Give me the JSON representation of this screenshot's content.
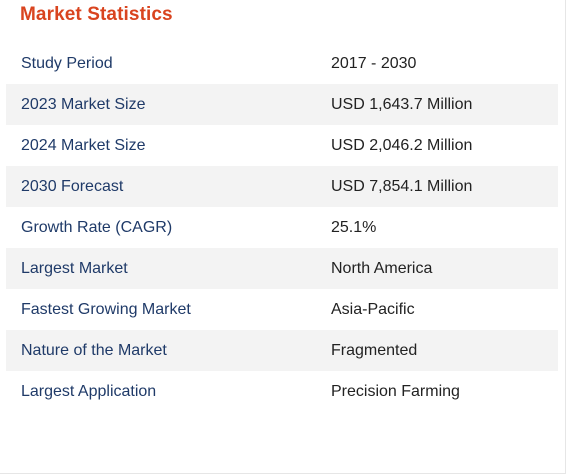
{
  "header": {
    "title": "Market Statistics"
  },
  "stats": [
    {
      "label": "Study Period",
      "value": "2017 - 2030"
    },
    {
      "label": "2023 Market Size",
      "value": "USD 1,643.7 Million"
    },
    {
      "label": "2024 Market Size",
      "value": "USD 2,046.2 Million"
    },
    {
      "label": "2030 Forecast",
      "value": "USD 7,854.1 Million"
    },
    {
      "label": "Growth Rate (CAGR)",
      "value": "25.1%"
    },
    {
      "label": "Largest Market",
      "value": "North America"
    },
    {
      "label": "Fastest Growing Market",
      "value": "Asia-Pacific"
    },
    {
      "label": "Nature of the Market",
      "value": "Fragmented"
    },
    {
      "label": "Largest Application",
      "value": "Precision Farming"
    }
  ],
  "colors": {
    "title": "#d9441f",
    "label": "#1f3a68",
    "value": "#222222",
    "alt_row": "#f3f3f3"
  }
}
